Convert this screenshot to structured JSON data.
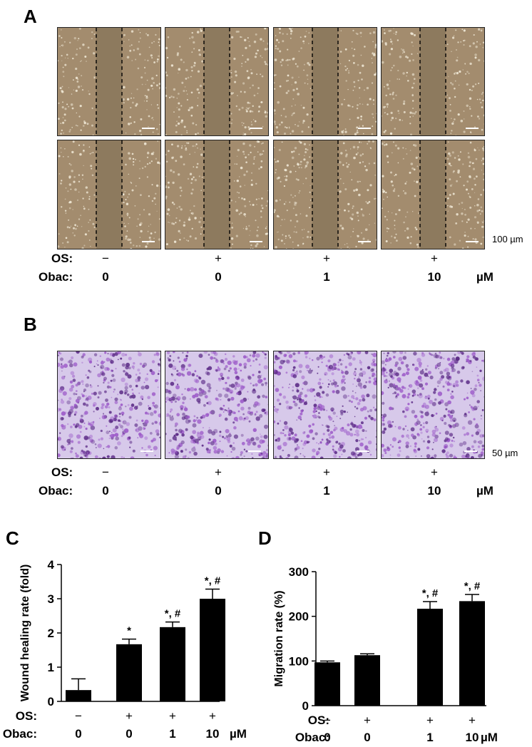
{
  "panels": {
    "a": "A",
    "b": "B",
    "c": "C",
    "d": "D"
  },
  "colors": {
    "gap_bg": "#8d7a5e",
    "cell_bg": "#a38c6e",
    "cell_dot": "#f2ebd9",
    "stain_bg": "#d7c9ea",
    "stain_dark": "#5b2a86",
    "stain_mid": "#9b58c8",
    "bar": "#000000"
  },
  "panel_a": {
    "scale_label": "100 µm",
    "conditions": {
      "os_label": "OS:",
      "obac_label": "Obac:",
      "unit": "µM",
      "os": [
        "−",
        "+",
        "+",
        "+"
      ],
      "obac": [
        "0",
        "0",
        "1",
        "10"
      ]
    }
  },
  "panel_b": {
    "scale_label": "50 µm",
    "conditions": {
      "os_label": "OS:",
      "obac_label": "Obac:",
      "unit": "µM",
      "os": [
        "−",
        "+",
        "+",
        "+"
      ],
      "obac": [
        "0",
        "0",
        "1",
        "10"
      ]
    }
  },
  "chart_data": [
    {
      "type": "bar",
      "panel": "C",
      "ylabel": "Wound healing rate (fold)",
      "ylim": [
        0,
        4
      ],
      "yticks": [
        "0",
        "1",
        "2",
        "3",
        "4"
      ],
      "categories": [
        "0",
        "0",
        "1",
        "10"
      ],
      "values": [
        0.33,
        1.67,
        2.17,
        3.0
      ],
      "errors": [
        0.33,
        0.15,
        0.15,
        0.28
      ],
      "annotations": [
        "",
        "*",
        "*, #",
        "*, #"
      ],
      "conditions": {
        "os_label": "OS:",
        "obac_label": "Obac:",
        "unit": "µM",
        "os": [
          "−",
          "+",
          "+",
          "+"
        ],
        "obac": [
          "0",
          "0",
          "1",
          "10"
        ]
      }
    },
    {
      "type": "bar",
      "panel": "D",
      "ylabel": "Migration  rate (%)",
      "ylim": [
        0,
        300
      ],
      "yticks": [
        "0",
        "100",
        "200",
        "300"
      ],
      "categories": [
        "0",
        "0",
        "1",
        "10"
      ],
      "values": [
        97,
        113,
        217,
        234
      ],
      "errors": [
        3,
        3,
        16,
        15
      ],
      "annotations": [
        "",
        "",
        "*, #",
        "*, #"
      ],
      "conditions": {
        "os_label": "OS:",
        "obac_label": "Obac:",
        "unit": "µM",
        "os": [
          "−",
          "+",
          "+",
          "+"
        ],
        "obac": [
          "0",
          "0",
          "1",
          "10"
        ]
      }
    }
  ]
}
